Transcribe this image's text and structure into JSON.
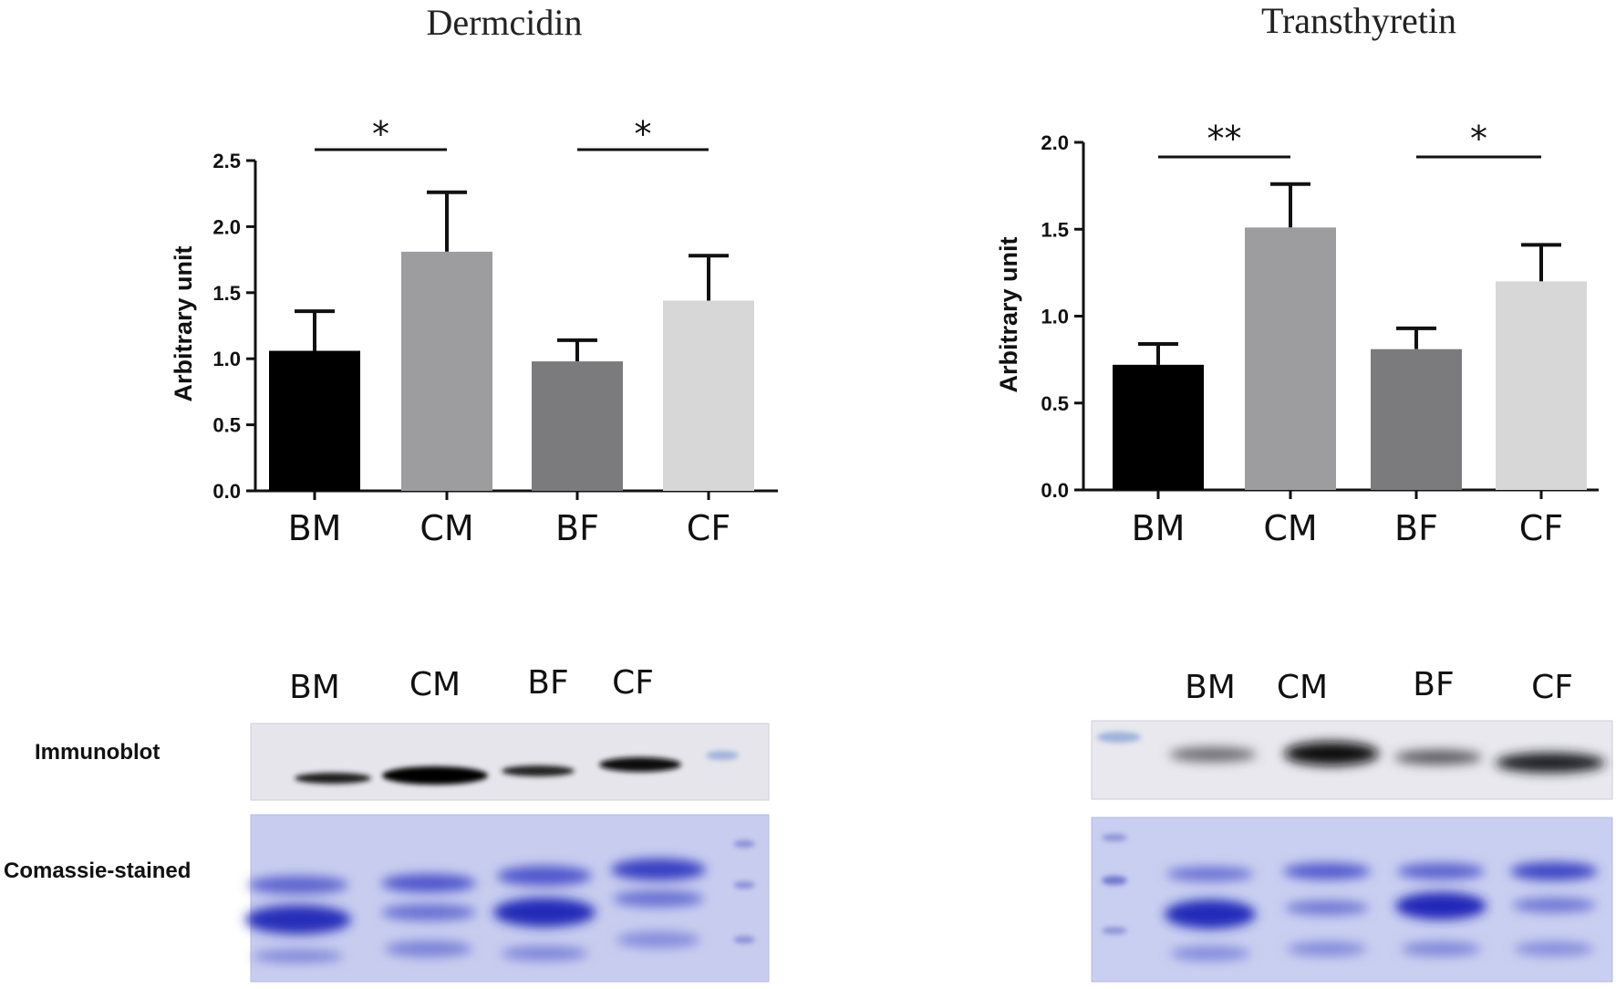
{
  "chart_data": [
    {
      "type": "bar",
      "title": "Dermcidin",
      "ylabel": "Arbitrary unit",
      "categories": [
        "BM",
        "CM",
        "BF",
        "CF"
      ],
      "values": [
        1.06,
        1.81,
        0.98,
        1.44
      ],
      "errors": [
        0.3,
        0.45,
        0.16,
        0.34
      ],
      "colors": [
        "#000000",
        "#9d9d9f",
        "#7b7b7d",
        "#d7d7d7"
      ],
      "ylim": [
        0,
        2.5
      ],
      "yticks": [
        "0.0",
        "0.5",
        "1.0",
        "1.5",
        "2.0",
        "2.5"
      ],
      "significance": [
        {
          "from": "BM",
          "to": "CM",
          "label": "*"
        },
        {
          "from": "BF",
          "to": "CF",
          "label": "*"
        }
      ],
      "grid": false
    },
    {
      "type": "bar",
      "title": "Transthyretin",
      "ylabel": "Arbitrary unit",
      "categories": [
        "BM",
        "CM",
        "BF",
        "CF"
      ],
      "values": [
        0.72,
        1.51,
        0.81,
        1.2
      ],
      "errors": [
        0.12,
        0.25,
        0.12,
        0.21
      ],
      "colors": [
        "#000000",
        "#9d9d9f",
        "#7b7b7d",
        "#d7d7d7"
      ],
      "ylim": [
        0,
        2.0
      ],
      "yticks": [
        "0.0",
        "0.5",
        "1.0",
        "1.5",
        "2.0"
      ],
      "significance": [
        {
          "from": "BM",
          "to": "CM",
          "label": "**"
        },
        {
          "from": "BF",
          "to": "CF",
          "label": "*"
        }
      ],
      "grid": false
    }
  ],
  "blots": {
    "row_labels": [
      "Immunoblot",
      "Comassie-stained"
    ],
    "panels": [
      {
        "lanes": [
          "BM",
          "CM",
          "BF",
          "CF"
        ],
        "immunoblot_intensity": [
          0.55,
          1.0,
          0.6,
          0.85
        ],
        "marker_lane": "right"
      },
      {
        "lanes": [
          "BM",
          "CM",
          "BF",
          "CF"
        ],
        "immunoblot_intensity": [
          0.35,
          0.95,
          0.4,
          0.75
        ],
        "marker_lane": "left"
      }
    ]
  }
}
